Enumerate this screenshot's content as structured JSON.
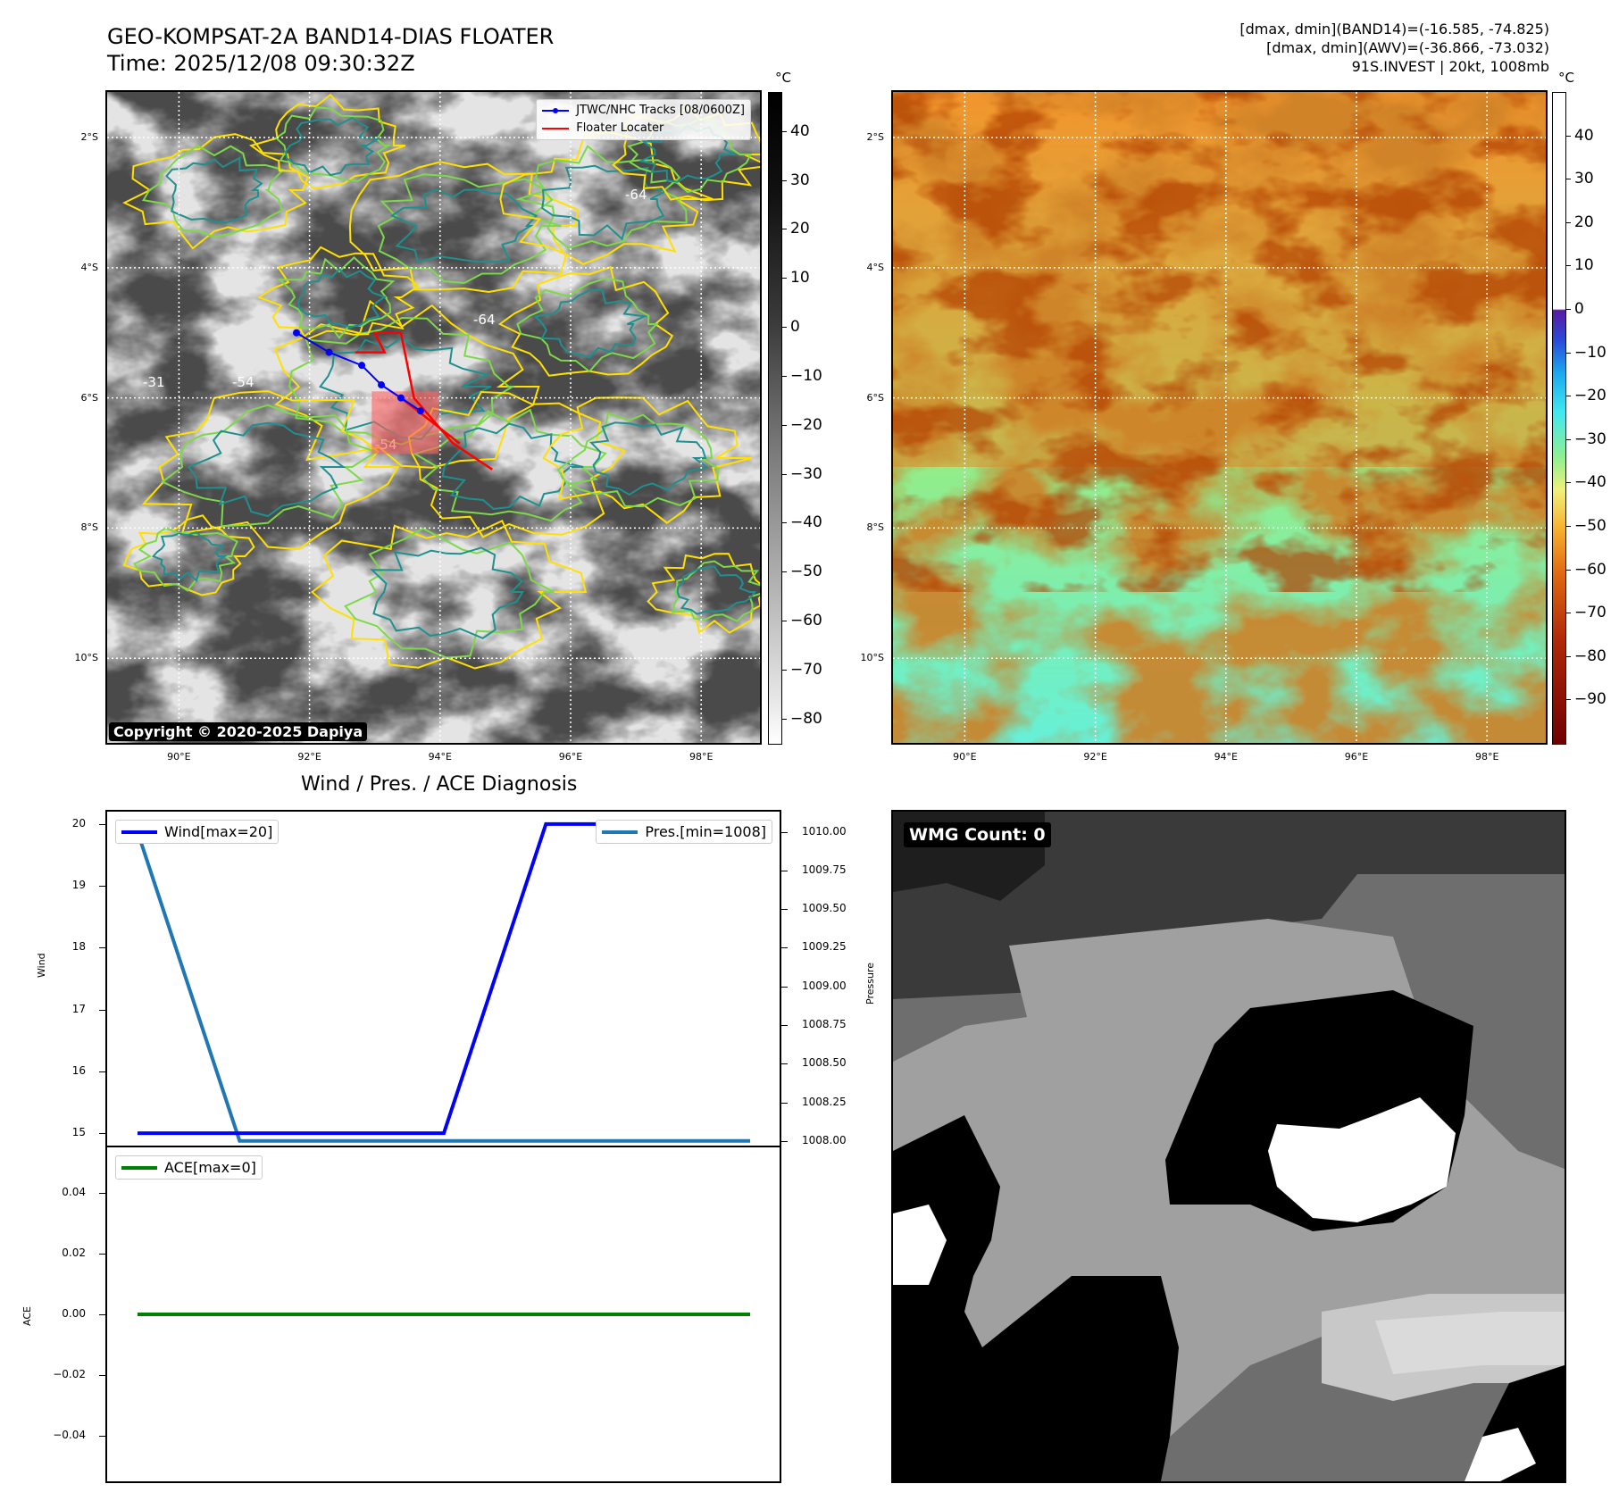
{
  "header": {
    "title_line1": "GEO-KOMPSAT-2A BAND14-DIAS FLOATER",
    "title_line2": "Time: 2025/12/08 09:30:32Z",
    "info_line1": "[dmax, dmin](BAND14)=(-16.585, -74.825)",
    "info_line2": "[dmax, dmin](AWV)=(-36.866, -73.032)",
    "info_line3": "91S.INVEST | 20kt, 1008mb"
  },
  "map_axes": {
    "lat_labels": [
      "2°S",
      "4°S",
      "6°S",
      "8°S",
      "10°S"
    ],
    "lon_labels": [
      "90°E",
      "92°E",
      "94°E",
      "96°E",
      "98°E"
    ],
    "lat_values": [
      -2,
      -4,
      -6,
      -8,
      -10
    ],
    "lon_values": [
      90,
      92,
      94,
      96,
      98
    ],
    "lat_range": [
      -1.3,
      -11.3
    ],
    "lon_range": [
      88.9,
      98.9
    ]
  },
  "ir_panel": {
    "legend": {
      "tracks": "JTWC/NHC Tracks [08/0600Z]",
      "floater": "Floater Locater"
    },
    "copyright": "Copyright © 2020-2025 Dapiya",
    "contour_labels": [
      "-31",
      "-54",
      "-64"
    ],
    "track": [
      [
        91.8,
        -5.0
      ],
      [
        92.3,
        -5.3
      ],
      [
        92.8,
        -5.5
      ],
      [
        93.1,
        -5.8
      ],
      [
        93.4,
        -6.0
      ],
      [
        93.7,
        -6.2
      ]
    ],
    "colors": {
      "track": "#0000ff",
      "floater": "#ff0000",
      "contour_yellow": "#ffe000",
      "contour_green": "#7dd84a",
      "contour_teal": "#1f8f8f"
    }
  },
  "ir_colorbar": {
    "unit": "°C",
    "ticks": [
      "40",
      "30",
      "20",
      "10",
      "0",
      "−10",
      "−20",
      "−30",
      "−40",
      "−50",
      "−60",
      "−70",
      "−80"
    ],
    "range": [
      48,
      -85
    ]
  },
  "awv_colorbar": {
    "unit": "°C",
    "ticks": [
      "40",
      "30",
      "20",
      "10",
      "0",
      "−10",
      "−20",
      "−30",
      "−40",
      "−50",
      "−60",
      "−70",
      "−80",
      "−90"
    ],
    "range": [
      50,
      -100
    ]
  },
  "diagnosis": {
    "title": "Wind / Pres. / ACE Diagnosis",
    "wind_legend": "Wind[max=20]",
    "pres_legend": "Pres.[min=1008]",
    "ace_legend": "ACE[max=0]",
    "wind_axis_label": "Wind",
    "pres_axis_label": "Pressure",
    "ace_axis_label": "ACE"
  },
  "wmg_panel": {
    "label": "WMG Count: 0"
  },
  "chart_data": [
    {
      "type": "line",
      "title": "Wind / Pres. / ACE Diagnosis",
      "x": [
        0,
        1,
        2,
        3,
        4,
        5,
        6
      ],
      "series": [
        {
          "name": "Wind[max=20]",
          "axis": "left",
          "color": "#0000ff",
          "values": [
            15,
            15,
            15,
            15,
            20,
            20,
            20
          ]
        },
        {
          "name": "Pres.[min=1008]",
          "axis": "right",
          "color": "#1f77b4",
          "values": [
            1010,
            1008,
            1008,
            1008,
            1008,
            1008,
            1008
          ]
        }
      ],
      "ylabel": "Wind",
      "ylim": [
        14.8,
        20.2
      ],
      "yticks": [
        "20",
        "19",
        "18",
        "17",
        "16",
        "15"
      ],
      "ytick_values": [
        20,
        19,
        18,
        17,
        16,
        15
      ],
      "y2label": "Pressure",
      "y2lim": [
        1007.97,
        1010.13
      ],
      "y2ticks": [
        "1010.00",
        "1009.75",
        "1009.50",
        "1009.25",
        "1009.00",
        "1008.75",
        "1008.50",
        "1008.25",
        "1008.00"
      ],
      "y2tick_values": [
        1010,
        1009.75,
        1009.5,
        1009.25,
        1009,
        1008.75,
        1008.5,
        1008.25,
        1008
      ]
    },
    {
      "type": "line",
      "x": [
        0,
        1,
        2,
        3,
        4,
        5,
        6
      ],
      "series": [
        {
          "name": "ACE[max=0]",
          "color": "#008000",
          "values": [
            0,
            0,
            0,
            0,
            0,
            0,
            0
          ]
        }
      ],
      "ylabel": "ACE",
      "ylim": [
        -0.055,
        0.055
      ],
      "yticks": [
        "0.04",
        "0.02",
        "0.00",
        "−0.02",
        "−0.04"
      ],
      "ytick_values": [
        0.04,
        0.02,
        0,
        -0.02,
        -0.04
      ]
    }
  ]
}
